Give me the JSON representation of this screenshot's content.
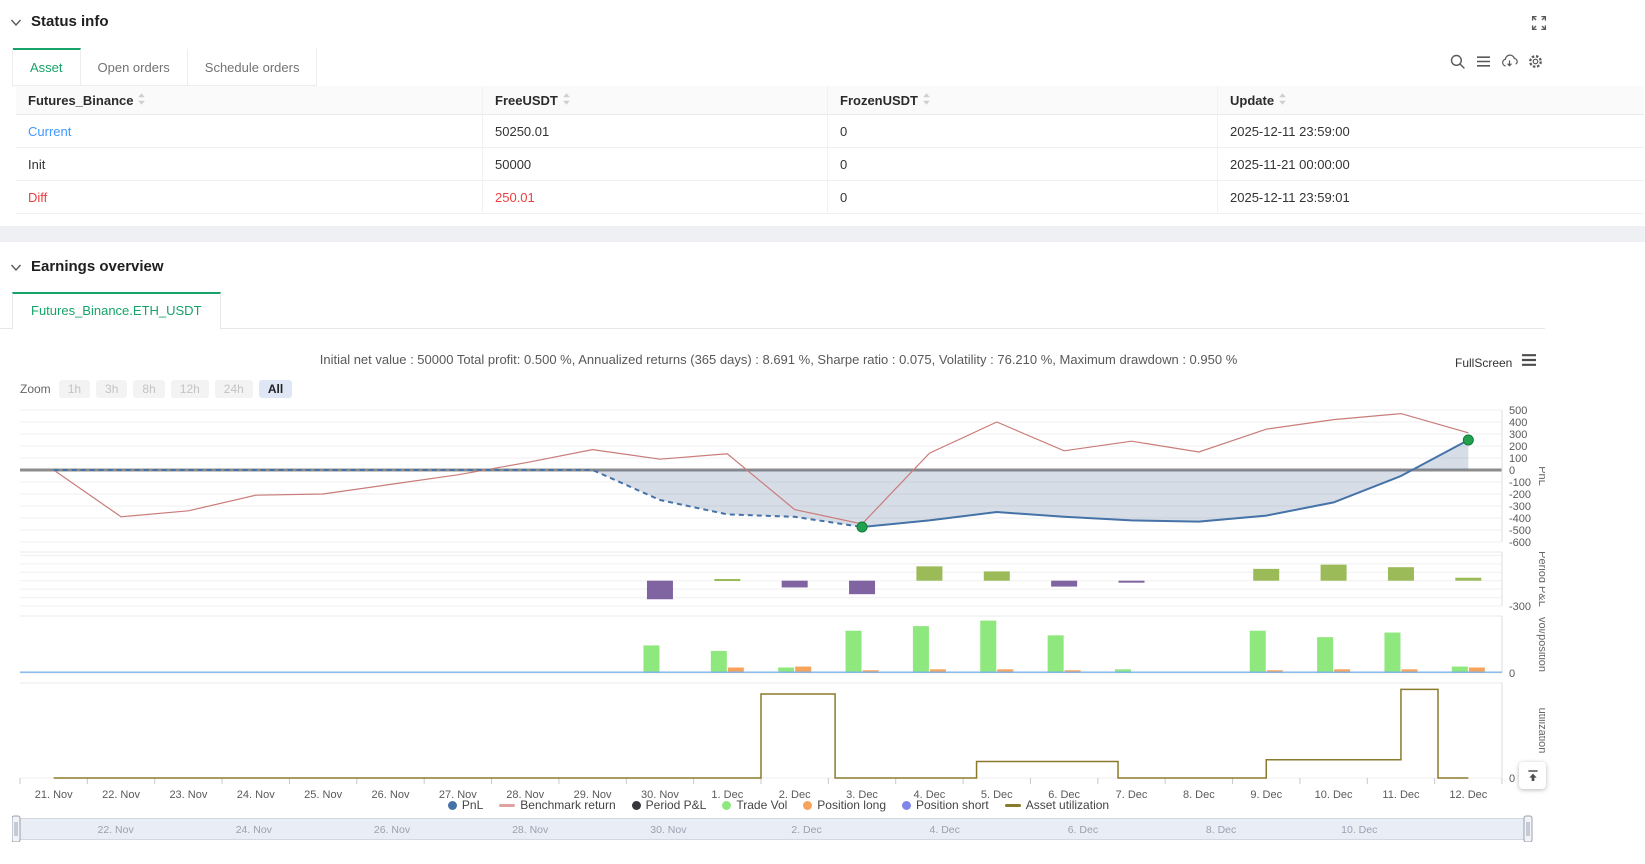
{
  "status_info": {
    "title": "Status info",
    "active_tab": "Asset",
    "tabs": [
      "Asset",
      "Open orders",
      "Schedule orders"
    ],
    "toolbar_icons": [
      "search",
      "menu",
      "cloud-download",
      "settings"
    ],
    "table": {
      "columns": [
        "Futures_Binance",
        "FreeUSDT",
        "FrozenUSDT",
        "Update"
      ],
      "rows": [
        {
          "cells": [
            "Current",
            "50250.01",
            "0",
            "2025-12-11 23:59:00"
          ],
          "accent": "link"
        },
        {
          "cells": [
            "Init",
            "50000",
            "0",
            "2025-11-21 00:00:00"
          ],
          "accent": "none"
        },
        {
          "cells": [
            "Diff",
            "250.01",
            "0",
            "2025-12-11 23:59:01"
          ],
          "accent": "danger"
        }
      ]
    }
  },
  "earnings": {
    "title": "Earnings overview",
    "tab": "Futures_Binance.ETH_USDT",
    "stats": "Initial net value : 50000 Total profit: 0.500 %, Annualized returns (365 days) : 8.691 %, Sharpe ratio : 0.075, Volatility : 76.210 %, Maximum drawdown : 0.950 %",
    "fullscreen_label": "FullScreen",
    "zoom": {
      "label": "Zoom",
      "options": [
        "1h",
        "3h",
        "8h",
        "12h",
        "24h",
        "All"
      ],
      "active": "All"
    }
  },
  "chart_data": {
    "type": "line+bar",
    "categories": [
      "21. Nov",
      "22. Nov",
      "23. Nov",
      "24. Nov",
      "25. Nov",
      "26. Nov",
      "27. Nov",
      "28. Nov",
      "29. Nov",
      "30. Nov",
      "1. Dec",
      "2. Dec",
      "3. Dec",
      "4. Dec",
      "5. Dec",
      "6. Dec",
      "7. Dec",
      "8. Dec",
      "9. Dec",
      "10. Dec",
      "11. Dec",
      "12. Dec"
    ],
    "panels": [
      {
        "name": "PnL",
        "ylim": [
          -600,
          500
        ],
        "ticks": [
          500,
          400,
          300,
          200,
          100,
          0,
          -100,
          -200,
          -300,
          -400,
          -500,
          -600
        ]
      },
      {
        "name": "Period P&L",
        "ylim": [
          -300,
          340
        ],
        "ticks": [
          -300
        ],
        "grid": [
          300,
          200,
          100,
          0,
          -100,
          -200,
          -300
        ]
      },
      {
        "name": "vol/position",
        "ylim": [
          0,
          62
        ],
        "ticks": [
          0
        ],
        "grid": [
          0
        ]
      },
      {
        "name": "utilization",
        "ylim": [
          0,
          1.04
        ],
        "ticks": [
          0
        ],
        "grid": [
          0
        ]
      }
    ],
    "series": [
      {
        "name": "PnL",
        "type": "line",
        "panel": 0,
        "color": "#4572a7",
        "area_color": "rgba(90,120,160,0.25)",
        "dashed_until_index": 12,
        "marker_indices": [
          12,
          21
        ],
        "marker_color": "#23a24d",
        "values": [
          0,
          0,
          0,
          0,
          0,
          0,
          0,
          0,
          0,
          -250,
          -370,
          -390,
          -475,
          -420,
          -350,
          -390,
          -420,
          -430,
          -380,
          -270,
          -50,
          250
        ]
      },
      {
        "name": "Benchmark return",
        "type": "line",
        "panel": 0,
        "color": "#c97c79",
        "values": [
          0,
          -390,
          -340,
          -210,
          -200,
          -120,
          -40,
          60,
          170,
          90,
          135,
          -330,
          -450,
          140,
          400,
          160,
          240,
          150,
          340,
          420,
          470,
          310
        ]
      },
      {
        "name": "Period P&L",
        "type": "bar",
        "panel": 1,
        "pos_color": "#9bbb59",
        "neg_color": "#8064a2",
        "values": [
          0,
          0,
          0,
          0,
          0,
          0,
          0,
          0,
          0,
          -220,
          20,
          -80,
          -160,
          170,
          110,
          -70,
          -12,
          0,
          140,
          190,
          160,
          35
        ]
      },
      {
        "name": "Trade Vol",
        "type": "bar",
        "panel": 2,
        "color": "#8ee87d",
        "values": [
          0,
          0,
          0,
          0,
          0,
          0,
          0,
          0,
          0,
          30,
          24,
          6,
          46,
          51,
          57,
          41,
          4,
          0,
          46,
          39,
          44,
          7
        ]
      },
      {
        "name": "Position long",
        "type": "bar",
        "panel": 2,
        "color": "#f7a35c",
        "values": [
          0,
          0,
          0,
          0,
          0,
          0,
          0,
          0,
          0,
          0,
          6,
          7,
          3,
          4,
          4,
          3,
          0,
          0,
          3,
          4,
          4,
          6
        ]
      },
      {
        "name": "Position short",
        "type": "line",
        "panel": 2,
        "color": "#7cb5ec",
        "values": [
          0,
          0,
          0,
          0,
          0,
          0,
          0,
          0,
          0,
          0,
          0,
          0,
          0,
          0,
          0,
          0,
          0,
          0,
          0,
          0,
          0,
          0
        ]
      },
      {
        "name": "Asset utilization",
        "type": "step",
        "panel": 3,
        "color": "#8a7a2c",
        "points": [
          [
            0,
            0
          ],
          [
            10.5,
            0.92
          ],
          [
            11.6,
            0
          ],
          [
            13.7,
            0.18
          ],
          [
            15.8,
            0
          ],
          [
            18,
            0.2
          ],
          [
            20,
            0.97
          ],
          [
            20.55,
            0
          ],
          [
            21,
            0
          ]
        ]
      }
    ],
    "legend": [
      {
        "label": "PnL",
        "shape": "dot",
        "color": "#4572a7"
      },
      {
        "label": "Benchmark return",
        "shape": "seg",
        "color": "#e0a2a0"
      },
      {
        "label": "Period P&L",
        "shape": "dot",
        "color": "#36363d"
      },
      {
        "label": "Trade Vol",
        "shape": "dot",
        "color": "#8ee87d"
      },
      {
        "label": "Position long",
        "shape": "dot",
        "color": "#f7a35c"
      },
      {
        "label": "Position short",
        "shape": "dot",
        "color": "#8085e9"
      },
      {
        "label": "Asset utilization",
        "shape": "seg",
        "color": "#8a7a2c"
      }
    ],
    "slider_label_indices": [
      1,
      3,
      5,
      7,
      9,
      11,
      13,
      15,
      17,
      19
    ]
  }
}
